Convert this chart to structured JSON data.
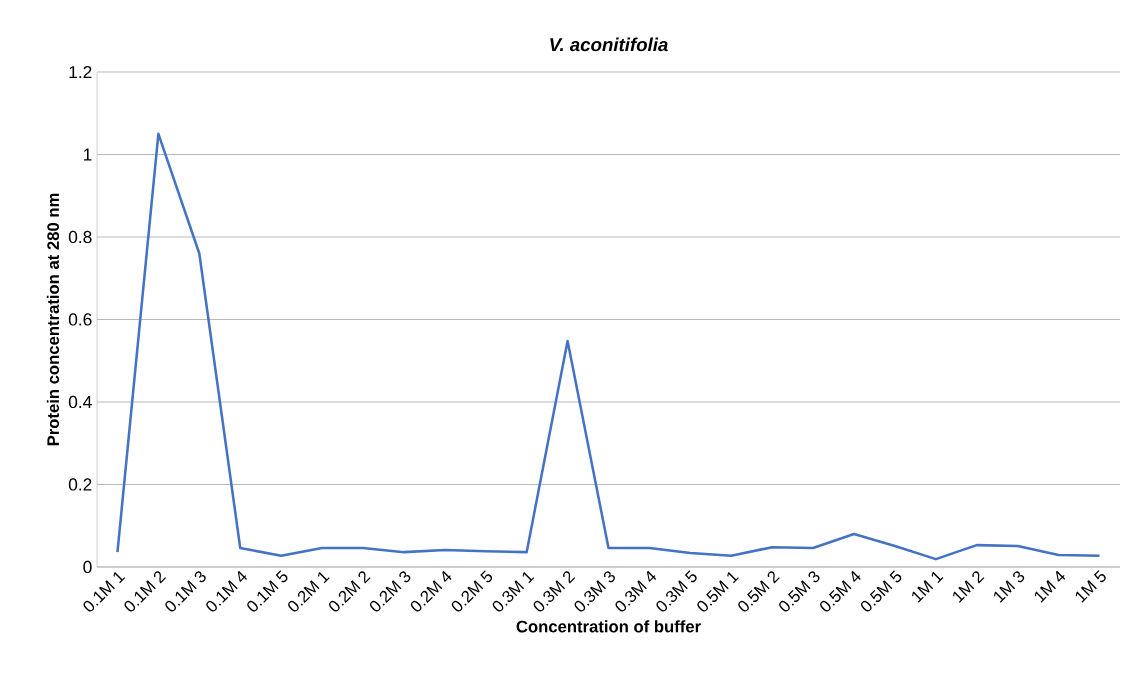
{
  "chart_data": {
    "type": "line",
    "title": "V. aconitifolia",
    "xlabel": "Concentration of buffer",
    "ylabel": "Protein concentration at 280 nm",
    "categories": [
      "0.1M 1",
      "0.1M 2",
      "0.1M 3",
      "0.1M 4",
      "0.1M 5",
      "0.2M 1",
      "0.2M 2",
      "0.2M 3",
      "0.2M 4",
      "0.2M 5",
      "0.3M 1",
      "0.3M 2",
      "0.3M 3",
      "0.3M 4",
      "0.3M 5",
      "0.5M 1",
      "0.5M 2",
      "0.5M 3",
      "0.5M 4",
      "0.5M 5",
      "1M 1",
      "1M 2",
      "1M 3",
      "1M 4",
      "1M 5"
    ],
    "series": [
      {
        "color": "#4472c4",
        "values": [
          0.036,
          1.05,
          0.76,
          0.046,
          0.027,
          0.046,
          0.046,
          0.036,
          0.041,
          0.038,
          0.036,
          0.548,
          0.046,
          0.046,
          0.034,
          0.027,
          0.048,
          0.046,
          0.08,
          0.051,
          0.019,
          0.053,
          0.051,
          0.029,
          0.027
        ]
      }
    ],
    "ylim": [
      0,
      1.2
    ],
    "yticks": [
      0,
      0.2,
      0.4,
      0.6,
      0.8,
      1,
      1.2
    ],
    "grid": "y",
    "marker": "none",
    "line_style": "solid"
  }
}
